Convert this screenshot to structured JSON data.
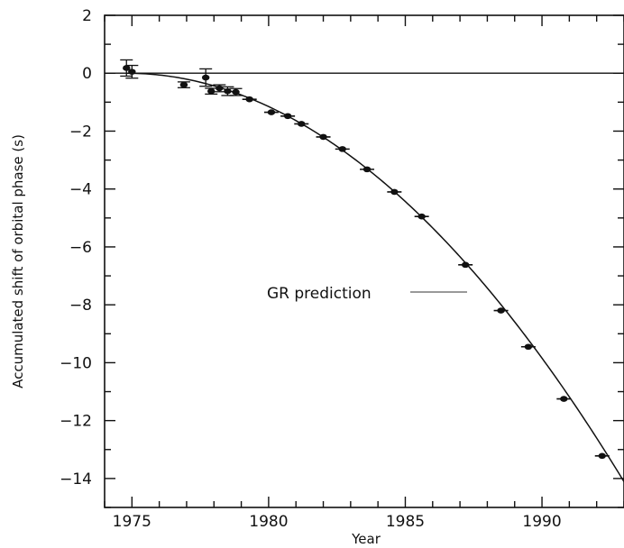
{
  "chart_data": {
    "type": "scatter",
    "title": "",
    "xlabel": "Year",
    "ylabel": "Accumulated shift of orbital phase (s)",
    "xlim": [
      1974.0,
      1993.0
    ],
    "ylim": [
      -15,
      2
    ],
    "x_ticks": [
      1975,
      1980,
      1985,
      1990
    ],
    "y_ticks": [
      2,
      0,
      -2,
      -4,
      -6,
      -8,
      -10,
      -12,
      -14
    ],
    "x_tick_labels": [
      "1975",
      "1980",
      "1985",
      "1990"
    ],
    "y_tick_labels": [
      "2",
      "0",
      "−2",
      "−4",
      "−6",
      "−8",
      "−10",
      "−12",
      "−14"
    ],
    "reference_line_y": 0,
    "grid": false,
    "curve_label": "GR prediction",
    "prediction_curve": {
      "t0": 1974.8,
      "coefficient": -0.0426
    },
    "series": [
      {
        "points": [
          {
            "x": 1974.8,
            "y": 0.18,
            "err": 0.28
          },
          {
            "x": 1975.0,
            "y": 0.05,
            "err": 0.22
          },
          {
            "x": 1976.9,
            "y": -0.4,
            "err": 0.1
          },
          {
            "x": 1977.7,
            "y": -0.15,
            "err": 0.3
          },
          {
            "x": 1977.9,
            "y": -0.62,
            "err": 0.1
          },
          {
            "x": 1978.2,
            "y": -0.52,
            "err": 0.12
          },
          {
            "x": 1978.5,
            "y": -0.62,
            "err": 0.15
          },
          {
            "x": 1978.8,
            "y": -0.65,
            "err": 0.12
          },
          {
            "x": 1979.3,
            "y": -0.9,
            "err": 0.08
          },
          {
            "x": 1980.1,
            "y": -1.35,
            "err": 0.08
          },
          {
            "x": 1980.7,
            "y": -1.48,
            "err": 0.08
          },
          {
            "x": 1981.2,
            "y": -1.75,
            "err": 0.07
          },
          {
            "x": 1982.0,
            "y": -2.2,
            "err": 0.07
          },
          {
            "x": 1982.7,
            "y": -2.62,
            "err": 0.07
          },
          {
            "x": 1983.6,
            "y": -3.32,
            "err": 0.07
          },
          {
            "x": 1984.6,
            "y": -4.1,
            "err": 0.07
          },
          {
            "x": 1985.6,
            "y": -4.95,
            "err": 0.07
          },
          {
            "x": 1987.2,
            "y": -6.62,
            "err": 0.07
          },
          {
            "x": 1988.5,
            "y": -8.2,
            "err": 0.07
          },
          {
            "x": 1989.5,
            "y": -9.45,
            "err": 0.07
          },
          {
            "x": 1990.8,
            "y": -11.25,
            "err": 0.07
          },
          {
            "x": 1992.2,
            "y": -13.22,
            "err": 0.07
          }
        ]
      }
    ]
  }
}
